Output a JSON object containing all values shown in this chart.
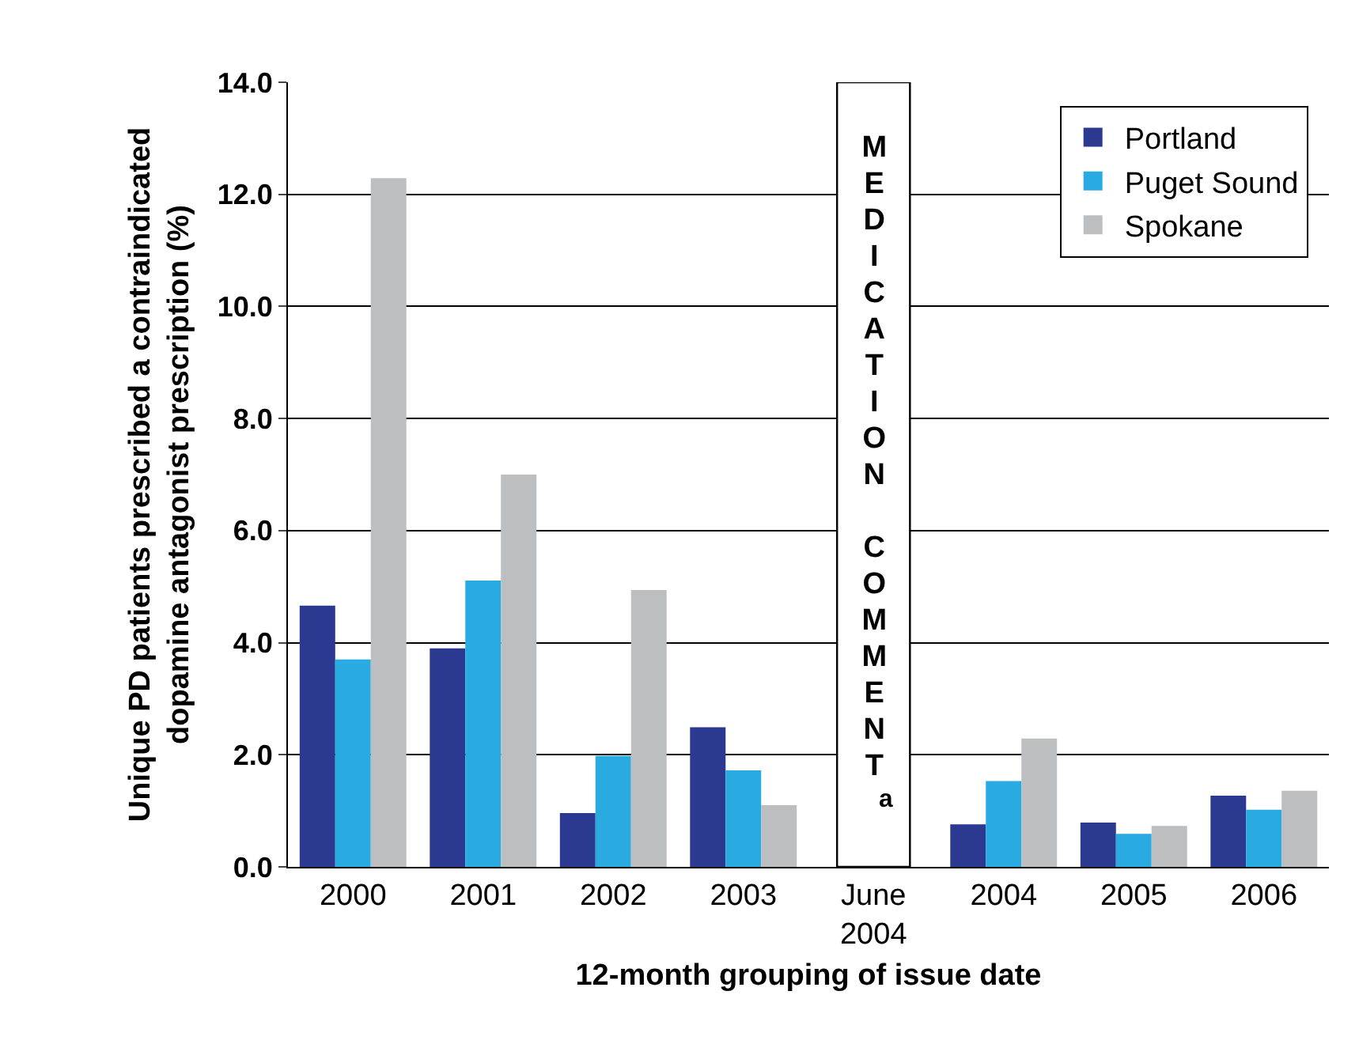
{
  "chart_data": {
    "type": "bar",
    "xlabel": "12-month grouping of issue date",
    "ylabel": "Unique PD patients prescribed a contraindicated dopamine antagonist prescription (%)",
    "categories": [
      "2000",
      "2001",
      "2002",
      "2003",
      "June 2004",
      "2004",
      "2005",
      "2006"
    ],
    "series": [
      {
        "name": "Portland",
        "color": "#2b3990",
        "values": [
          4.66,
          3.9,
          0.96,
          2.49,
          null,
          0.76,
          0.79,
          1.27
        ]
      },
      {
        "name": "Puget Sound",
        "color": "#29abe2",
        "values": [
          3.7,
          5.11,
          1.98,
          1.72,
          null,
          1.53,
          0.59,
          1.02
        ]
      },
      {
        "name": "Spokane",
        "color": "#bcbec0",
        "values": [
          12.29,
          7.0,
          4.94,
          1.1,
          null,
          2.29,
          0.73,
          1.36
        ]
      }
    ],
    "ylim": [
      0,
      14
    ],
    "yticks": [
      {
        "value": 0,
        "label": "0.0"
      },
      {
        "value": 2,
        "label": "2.0"
      },
      {
        "value": 4,
        "label": "4.0"
      },
      {
        "value": 6,
        "label": "6.0"
      },
      {
        "value": 8,
        "label": "8.0"
      },
      {
        "value": 10,
        "label": "10.0"
      },
      {
        "value": 12,
        "label": "12.0"
      },
      {
        "value": 14,
        "label": "14.0"
      }
    ],
    "grid": "y",
    "legend": "top right",
    "bands": [
      {
        "axis": "x",
        "from": "June 2004",
        "to": "June 2004",
        "label": "MEDICATION COMMENT$^{a}$",
        "color": "#ffffff"
      }
    ]
  }
}
